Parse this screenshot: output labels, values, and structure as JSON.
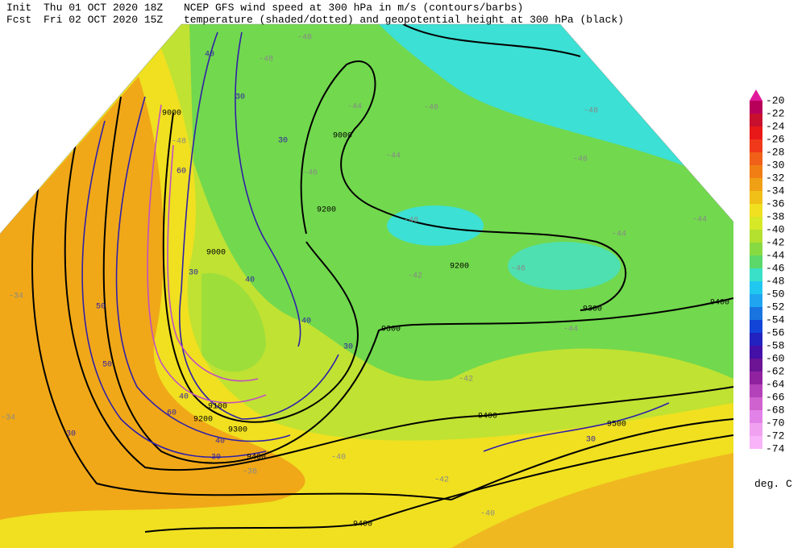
{
  "header": {
    "init_label": "Init",
    "init": "Thu 01 OCT 2020 18Z",
    "fcst_label": "Fcst",
    "fcst": "Fri 02 OCT 2020 15Z",
    "title_line1": "NCEP GFS wind speed at 300 hPa in m/s (contours/barbs)",
    "title_line2": "temperature (shaded/dotted) and geopotential height at 300 hPa (black)"
  },
  "colorbar": {
    "levels": [
      -20,
      -22,
      -24,
      -26,
      -28,
      -30,
      -32,
      -34,
      -36,
      -38,
      -40,
      -42,
      -44,
      -46,
      -48,
      -50,
      -52,
      -54,
      -56,
      -58,
      -60,
      -62,
      -64,
      -66,
      -68,
      -70,
      -72,
      -74
    ],
    "colors": [
      "#e01a9a",
      "#b8005a",
      "#c8102e",
      "#e81818",
      "#f0381a",
      "#f06018",
      "#f07e14",
      "#f0a014",
      "#f0c018",
      "#f0e020",
      "#d6e826",
      "#b4e030",
      "#88da42",
      "#5cd86a",
      "#3ae0c8",
      "#20c8f0",
      "#20a6f0",
      "#1a74e0",
      "#1244d8",
      "#2222c0",
      "#4410a8",
      "#6c1494",
      "#9022a0",
      "#b442b8",
      "#d062d0",
      "#e282e8",
      "#f0a2f0",
      "#f8b4f8"
    ],
    "unit": "deg. C"
  },
  "map": {
    "height_labels": [
      9000,
      9000,
      9000,
      9200,
      9200,
      9300,
      9300,
      9400,
      9400,
      9500,
      9400,
      9400,
      9300,
      9200,
      9100
    ],
    "temperature_labels": [
      -48,
      -48,
      -44,
      -46,
      -44,
      -46,
      -48,
      -48,
      -46,
      -42,
      -44,
      -42,
      -40,
      -42,
      -40,
      -36,
      -34,
      -34,
      -44,
      -46,
      -48,
      -44
    ],
    "wind_labels": [
      40,
      30,
      30,
      60,
      50,
      50,
      30,
      40,
      30,
      40,
      60,
      40,
      30,
      30,
      30,
      40
    ]
  }
}
